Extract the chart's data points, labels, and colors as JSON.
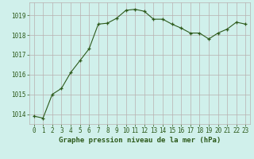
{
  "hours": [
    0,
    1,
    2,
    3,
    4,
    5,
    6,
    7,
    8,
    9,
    10,
    11,
    12,
    13,
    14,
    15,
    16,
    17,
    18,
    19,
    20,
    21,
    22,
    23
  ],
  "pressure": [
    1013.9,
    1013.8,
    1015.0,
    1015.3,
    1016.1,
    1016.7,
    1017.3,
    1018.55,
    1018.6,
    1018.85,
    1019.25,
    1019.3,
    1019.2,
    1018.8,
    1018.8,
    1018.55,
    1018.35,
    1018.1,
    1018.1,
    1017.8,
    1018.1,
    1018.3,
    1018.65,
    1018.55
  ],
  "line_color": "#2d5a1b",
  "marker_color": "#2d5a1b",
  "bg_color": "#d0f0eb",
  "grid_color": "#b8b0b0",
  "xlabel": "Graphe pression niveau de la mer (hPa)",
  "xlabel_color": "#2d5a1b",
  "ylabel_ticks": [
    1014,
    1015,
    1016,
    1017,
    1018,
    1019
  ],
  "ylim": [
    1013.5,
    1019.65
  ],
  "xlim": [
    -0.5,
    23.5
  ],
  "tick_color": "#2d5a1b",
  "axis_label_fontsize": 6.5,
  "tick_fontsize": 5.5
}
